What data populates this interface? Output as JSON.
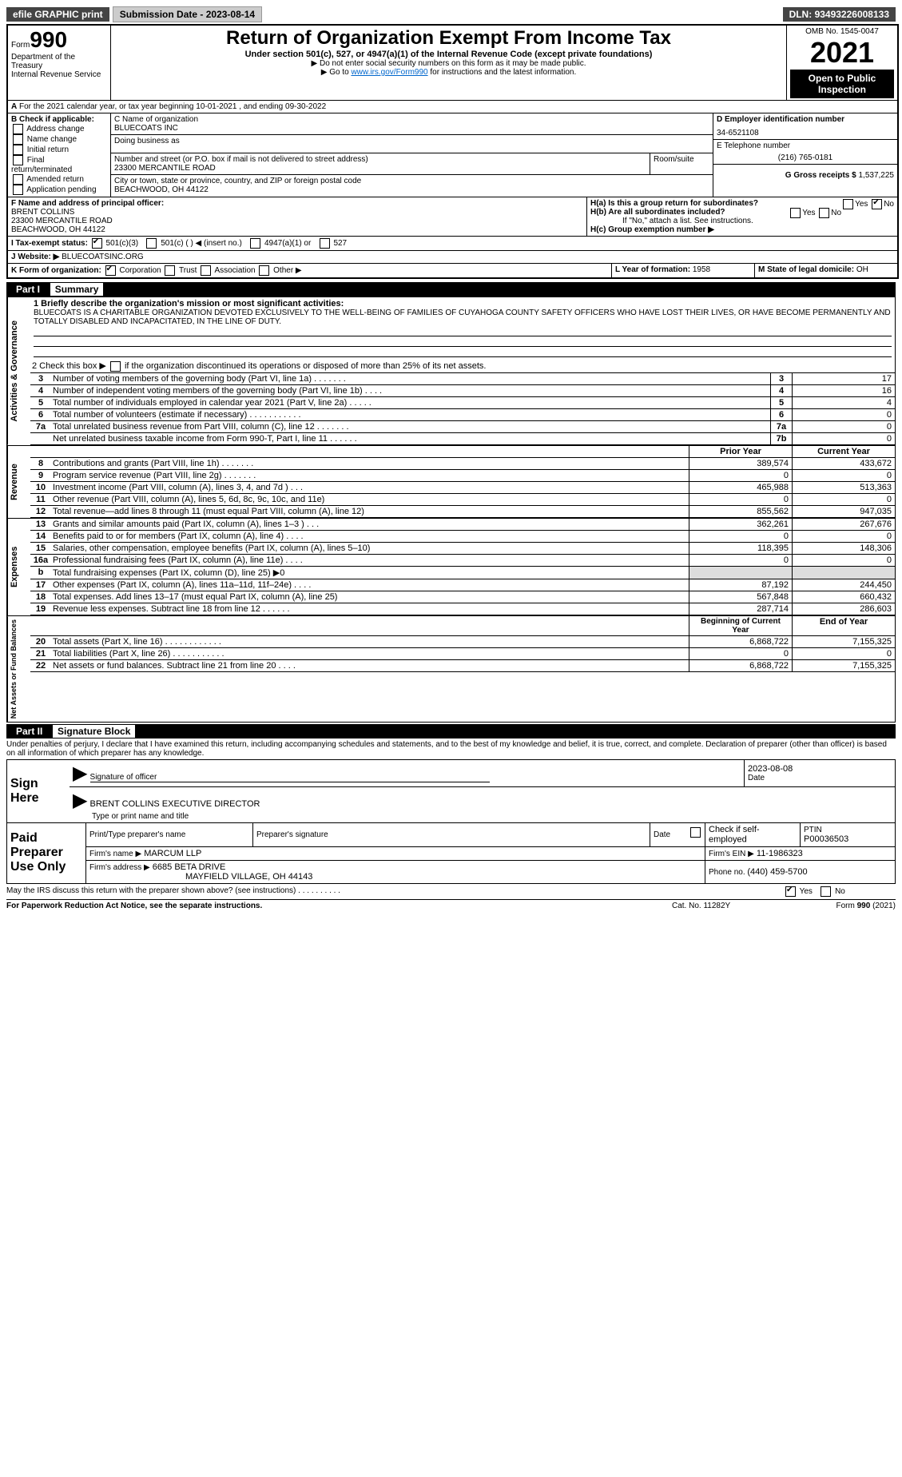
{
  "top_bar": {
    "efile": "efile GRAPHIC print",
    "sub_label": "Submission Date - ",
    "sub_date": "2023-08-14",
    "dln_label": "DLN: ",
    "dln": "93493226008133"
  },
  "header": {
    "form_small": "Form",
    "form_num": "990",
    "dept": "Department of the Treasury",
    "irs": "Internal Revenue Service",
    "title": "Return of Organization Exempt From Income Tax",
    "subtitle": "Under section 501(c), 527, or 4947(a)(1) of the Internal Revenue Code (except private foundations)",
    "note1": "▶ Do not enter social security numbers on this form as it may be made public.",
    "note2": "▶ Go to ",
    "link": "www.irs.gov/Form990",
    "note2b": " for instructions and the latest information.",
    "omb": "OMB No. 1545-0047",
    "year": "2021",
    "open": "Open to Public Inspection"
  },
  "periodA": "For the 2021 calendar year, or tax year beginning 10-01-2021    , and ending 09-30-2022",
  "boxB": {
    "label": "B Check if applicable:",
    "items": [
      "Address change",
      "Name change",
      "Initial return",
      "Final return/terminated",
      "Amended return",
      "Application pending"
    ]
  },
  "boxC": {
    "label": "C Name of organization",
    "name": "BLUECOATS INC",
    "dba_label": "Doing business as",
    "addr_label": "Number and street (or P.O. box if mail is not delivered to street address)",
    "room_label": "Room/suite",
    "addr": "23300 MERCANTILE ROAD",
    "city_label": "City or town, state or province, country, and ZIP or foreign postal code",
    "city": "BEACHWOOD, OH  44122"
  },
  "boxD": {
    "label": "D Employer identification number",
    "ein": "34-6521108"
  },
  "boxE": {
    "label": "E Telephone number",
    "tel": "(216) 765-0181"
  },
  "boxG": {
    "label": "G Gross receipts $ ",
    "val": "1,537,225"
  },
  "boxF": {
    "label": "F Name and address of principal officer:",
    "name": "BRENT COLLINS",
    "addr1": "23300 MERCANTILE ROAD",
    "addr2": "BEACHWOOD, OH  44122"
  },
  "boxH": {
    "a": "H(a)  Is this a group return for subordinates?",
    "b": "H(b)  Are all subordinates included?",
    "note": "If \"No,\" attach a list. See instructions.",
    "c": "H(c)  Group exemption number ▶",
    "yes": "Yes",
    "no": "No"
  },
  "boxI": {
    "label": "I  Tax-exempt status:",
    "c3": "501(c)(3)",
    "c": "501(c) (  ) ◀ (insert no.)",
    "a1": "4947(a)(1) or",
    "s527": "527"
  },
  "boxJ": {
    "label": "J  Website: ▶",
    "val": "BLUECOATSINC.ORG"
  },
  "boxK": {
    "label": "K Form of organization:",
    "opts": [
      "Corporation",
      "Trust",
      "Association",
      "Other ▶"
    ]
  },
  "boxL": {
    "label": "L Year of formation: ",
    "val": "1958"
  },
  "boxM": {
    "label": "M State of legal domicile: ",
    "val": "OH"
  },
  "part1": {
    "hdr": "Part I",
    "title": "Summary",
    "q1": "1  Briefly describe the organization's mission or most significant activities:",
    "mission": "BLUECOATS IS A CHARITABLE ORGANIZATION DEVOTED EXCLUSIVELY TO THE WELL-BEING OF FAMILIES OF CUYAHOGA COUNTY SAFETY OFFICERS WHO HAVE LOST THEIR LIVES, OR HAVE BECOME PERMANENTLY AND TOTALLY DISABLED AND INCAPACITATED, IN THE LINE OF DUTY.",
    "q2a": "2  Check this box ▶",
    "q2b": " if the organization discontinued its operations or disposed of more than 25% of its net assets."
  },
  "side_labels": {
    "gov": "Activities & Governance",
    "rev": "Revenue",
    "exp": "Expenses",
    "net": "Net Assets or Fund Balances"
  },
  "gov_rows": [
    {
      "n": "3",
      "t": "Number of voting members of the governing body (Part VI, line 1a)  .     .     .     .     .     .     .",
      "b": "3",
      "v": "17"
    },
    {
      "n": "4",
      "t": "Number of independent voting members of the governing body (Part VI, line 1b)    .     .     .     .",
      "b": "4",
      "v": "16"
    },
    {
      "n": "5",
      "t": "Total number of individuals employed in calendar year 2021 (Part V, line 2a)   .     .     .     .     .",
      "b": "5",
      "v": "4"
    },
    {
      "n": "6",
      "t": "Total number of volunteers (estimate if necessary)    .     .     .     .     .     .     .     .     .     .     .",
      "b": "6",
      "v": "0"
    },
    {
      "n": "7a",
      "t": "Total unrelated business revenue from Part VIII, column (C), line 12   .     .     .     .     .     .     .",
      "b": "7a",
      "v": "0"
    },
    {
      "n": "",
      "t": "Net unrelated business taxable income from Form 990-T, Part I, line 11   .     .     .     .     .     .",
      "b": "7b",
      "v": "0"
    }
  ],
  "col_hdrs": {
    "prior": "Prior Year",
    "curr": "Current Year"
  },
  "rev_rows": [
    {
      "n": "8",
      "t": "Contributions and grants (Part VIII, line 1h)   .     .     .     .     .     .     .",
      "p": "389,574",
      "c": "433,672"
    },
    {
      "n": "9",
      "t": "Program service revenue (Part VIII, line 2g)   .     .     .     .     .     .     .",
      "p": "0",
      "c": "0"
    },
    {
      "n": "10",
      "t": "Investment income (Part VIII, column (A), lines 3, 4, and 7d )   .     .     .",
      "p": "465,988",
      "c": "513,363"
    },
    {
      "n": "11",
      "t": "Other revenue (Part VIII, column (A), lines 5, 6d, 8c, 9c, 10c, and 11e)",
      "p": "0",
      "c": "0"
    },
    {
      "n": "12",
      "t": "Total revenue—add lines 8 through 11 (must equal Part VIII, column (A), line 12)",
      "p": "855,562",
      "c": "947,035"
    }
  ],
  "exp_rows": [
    {
      "n": "13",
      "t": "Grants and similar amounts paid (Part IX, column (A), lines 1–3 )   .     .     .",
      "p": "362,261",
      "c": "267,676"
    },
    {
      "n": "14",
      "t": "Benefits paid to or for members (Part IX, column (A), line 4)   .     .     .     .",
      "p": "0",
      "c": "0"
    },
    {
      "n": "15",
      "t": "Salaries, other compensation, employee benefits (Part IX, column (A), lines 5–10)",
      "p": "118,395",
      "c": "148,306"
    },
    {
      "n": "16a",
      "t": "Professional fundraising fees (Part IX, column (A), line 11e)   .     .     .     .",
      "p": "0",
      "c": "0"
    },
    {
      "n": "b",
      "t": "Total fundraising expenses (Part IX, column (D), line 25) ▶0",
      "p": "",
      "c": "",
      "grey": true
    },
    {
      "n": "17",
      "t": "Other expenses (Part IX, column (A), lines 11a–11d, 11f–24e)   .     .     .     .",
      "p": "87,192",
      "c": "244,450"
    },
    {
      "n": "18",
      "t": "Total expenses. Add lines 13–17 (must equal Part IX, column (A), line 25)",
      "p": "567,848",
      "c": "660,432"
    },
    {
      "n": "19",
      "t": "Revenue less expenses. Subtract line 18 from line 12   .     .     .     .     .     .",
      "p": "287,714",
      "c": "286,603"
    }
  ],
  "net_hdrs": {
    "beg": "Beginning of Current Year",
    "end": "End of Year"
  },
  "net_rows": [
    {
      "n": "20",
      "t": "Total assets (Part X, line 16)   .     .     .     .     .     .     .     .     .     .     .     .",
      "p": "6,868,722",
      "c": "7,155,325"
    },
    {
      "n": "21",
      "t": "Total liabilities (Part X, line 26)   .     .     .     .     .     .     .     .     .     .     .",
      "p": "0",
      "c": "0"
    },
    {
      "n": "22",
      "t": "Net assets or fund balances. Subtract line 21 from line 20   .     .     .     .",
      "p": "6,868,722",
      "c": "7,155,325"
    }
  ],
  "part2": {
    "hdr": "Part II",
    "title": "Signature Block",
    "declare": "Under penalties of perjury, I declare that I have examined this return, including accompanying schedules and statements, and to the best of my knowledge and belief, it is true, correct, and complete. Declaration of preparer (other than officer) is based on all information of which preparer has any knowledge."
  },
  "sign": {
    "here": "Sign Here",
    "sig_officer": "Signature of officer",
    "date": "Date",
    "date_val": "2023-08-08",
    "name": "BRENT COLLINS  EXECUTIVE DIRECTOR",
    "name_label": "Type or print name and title"
  },
  "paid": {
    "label": "Paid Preparer Use Only",
    "prep_name_label": "Print/Type preparer's name",
    "prep_sig_label": "Preparer's signature",
    "date_label": "Date",
    "check_label": "Check          if self-employed",
    "ptin_label": "PTIN",
    "ptin": "P00036503",
    "firm_name_label": "Firm's name    ▶",
    "firm_name": "MARCUM LLP",
    "firm_ein_label": "Firm's EIN ▶",
    "firm_ein": "11-1986323",
    "firm_addr_label": "Firm's address ▶",
    "firm_addr1": "6685 BETA DRIVE",
    "firm_addr2": "MAYFIELD VILLAGE, OH  44143",
    "phone_label": "Phone no. ",
    "phone": "(440) 459-5700"
  },
  "footer": {
    "q": "May the IRS discuss this return with the preparer shown above? (see instructions)   .     .     .     .     .     .     .     .     .     .",
    "yes": "Yes",
    "no": "No",
    "pra": "For Paperwork Reduction Act Notice, see the separate instructions.",
    "cat": "Cat. No. 11282Y",
    "form": "Form 990 (2021)"
  }
}
